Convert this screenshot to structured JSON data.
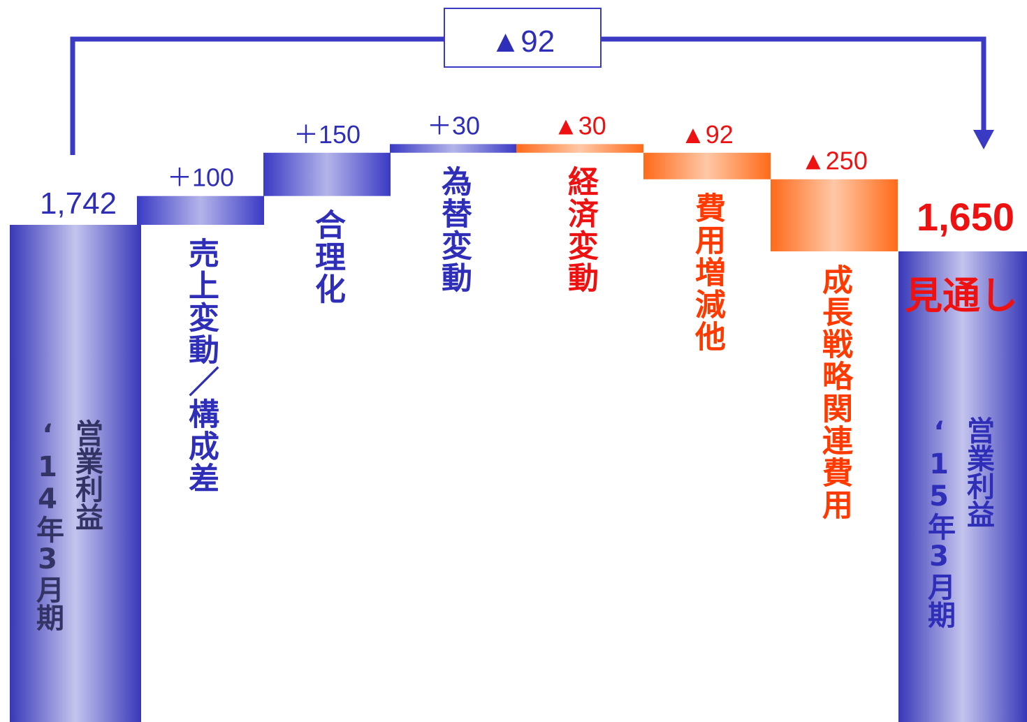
{
  "chart_data": {
    "type": "bar",
    "subtype": "waterfall",
    "start": {
      "value": 1742,
      "label": "1,742",
      "category_lines": [
        "営業利益",
        "‘14年3月期"
      ]
    },
    "end": {
      "value": 1650,
      "label": "1,650",
      "note": "見通し",
      "category_lines": [
        "営業利益",
        "‘15年3月期"
      ]
    },
    "steps": [
      {
        "category": "売上変動／構成差",
        "delta": 100,
        "label": "＋100"
      },
      {
        "category": "合理化",
        "delta": 150,
        "label": "＋150"
      },
      {
        "category": "為替変動",
        "delta": 30,
        "label": "＋30"
      },
      {
        "category": "経済変動",
        "delta": -30,
        "label": "▲30"
      },
      {
        "category": "費用増減他",
        "delta": -92,
        "label": "▲92"
      },
      {
        "category": "成長戦略関連費用",
        "delta": -250,
        "label": "▲250"
      }
    ],
    "total_change": {
      "delta": -92,
      "label": "▲92"
    }
  },
  "colors": {
    "increase_dark": "#3838c0",
    "increase_light": "#b8b8ec",
    "decrease_dark": "#ff6a1a",
    "decrease_light": "#ffc8a6",
    "blue_text": "#2e2eb8",
    "red_text": "#ee1111",
    "orange_text": "#ff3a00",
    "axis_text_dark": "#333366",
    "bracket": "#3a3ac4"
  }
}
